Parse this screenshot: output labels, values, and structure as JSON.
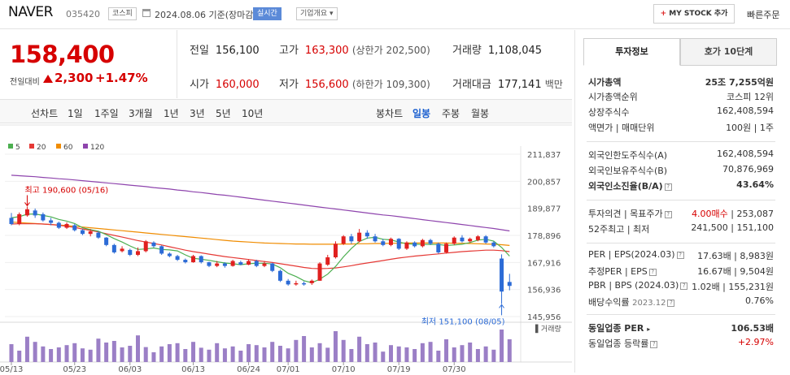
{
  "header": {
    "name": "NAVER",
    "code": "035420",
    "market": "코스피",
    "date": "2024.08.06",
    "basis": "기준(장마감)",
    "realtime": "실시간",
    "overview": "기업개요 ▾",
    "mystock": "MY STOCK 추가",
    "quick_order": "빠른주문"
  },
  "price": {
    "current": "158,400",
    "change_label": "전일대비",
    "change": "2,300",
    "pct": "+1.47%",
    "color": "#d60000"
  },
  "stats": {
    "prev_label": "전일",
    "prev": "156,100",
    "high_label": "고가",
    "high": "163,300",
    "upper_limit": "(상한가 202,500)",
    "volume_label": "거래량",
    "volume": "1,108,045",
    "open_label": "시가",
    "open": "160,000",
    "low_label": "저가",
    "low": "156,600",
    "lower_limit": "(하한가 109,300)",
    "amount_label": "거래대금",
    "amount": "177,141",
    "amount_unit": "백만"
  },
  "period_bar": {
    "line_chart": "선차트",
    "periods": [
      "1일",
      "1주일",
      "3개월",
      "1년",
      "3년",
      "5년",
      "10년"
    ],
    "candle_chart": "봉차트",
    "candle_periods": [
      "일봉",
      "주봉",
      "월봉"
    ],
    "active": "일봉"
  },
  "chart_data": {
    "type": "candlestick",
    "legend": [
      {
        "name": "5",
        "color": "#4caf50"
      },
      {
        "name": "20",
        "color": "#e53935"
      },
      {
        "name": "60",
        "color": "#f08c00"
      },
      {
        "name": "120",
        "color": "#8e44ad"
      }
    ],
    "y_ticks": [
      "211,837",
      "200,857",
      "189,877",
      "178,896",
      "167,916",
      "156,936",
      "145,956"
    ],
    "ylim": [
      145956,
      211837
    ],
    "x_ticks": [
      "05/13",
      "05/23",
      "06/03",
      "06/13",
      "06/24",
      "07/01",
      "07/10",
      "07/19",
      "07/30"
    ],
    "x_tick_index": [
      0,
      8,
      15,
      23,
      30,
      35,
      42,
      49,
      56
    ],
    "annotations": {
      "high": "최고 190,600 (05/16)",
      "low": "최저 151,100 (08/05)"
    },
    "volume_label": "거래량",
    "candles": [
      [
        186000,
        183500,
        188000,
        183000
      ],
      [
        183500,
        187500,
        188200,
        183000
      ],
      [
        187000,
        189500,
        190600,
        186500
      ],
      [
        189000,
        187000,
        189800,
        186000
      ],
      [
        187500,
        185000,
        188200,
        184500
      ],
      [
        185000,
        184000,
        186000,
        183000
      ],
      [
        184000,
        182000,
        184500,
        181500
      ],
      [
        182000,
        183500,
        184200,
        181500
      ],
      [
        183000,
        181000,
        183500,
        180500
      ],
      [
        181000,
        179500,
        181500,
        179000
      ],
      [
        179500,
        180500,
        181500,
        178500
      ],
      [
        180000,
        178000,
        180500,
        177500
      ],
      [
        178000,
        175000,
        178200,
        174500
      ],
      [
        175000,
        172000,
        175500,
        171500
      ],
      [
        172500,
        173500,
        174500,
        172000
      ],
      [
        173000,
        171000,
        173500,
        170500
      ],
      [
        171000,
        172500,
        174000,
        170500
      ],
      [
        172500,
        176500,
        177000,
        172000
      ],
      [
        176000,
        174500,
        176500,
        174000
      ],
      [
        174500,
        171500,
        174800,
        171000
      ],
      [
        171500,
        170500,
        172000,
        170000
      ],
      [
        170500,
        169000,
        171000,
        168500
      ],
      [
        169000,
        168000,
        169500,
        167500
      ],
      [
        168000,
        170500,
        171000,
        167800
      ],
      [
        170500,
        168000,
        170800,
        167500
      ],
      [
        168000,
        166500,
        168200,
        166000
      ],
      [
        166500,
        167500,
        168500,
        166000
      ],
      [
        167500,
        166500,
        168000,
        165800
      ],
      [
        166500,
        168500,
        169000,
        166200
      ],
      [
        168000,
        167000,
        168600,
        166800
      ],
      [
        167000,
        168500,
        169200,
        166800
      ],
      [
        168500,
        166500,
        169000,
        166000
      ],
      [
        166500,
        167500,
        168500,
        166000
      ],
      [
        167500,
        164500,
        167800,
        164000
      ],
      [
        164500,
        160500,
        165000,
        160000
      ],
      [
        160500,
        159000,
        161200,
        158500
      ],
      [
        159000,
        159500,
        160500,
        158500
      ],
      [
        159500,
        159000,
        160200,
        158500
      ],
      [
        159500,
        160500,
        161000,
        158800
      ],
      [
        160500,
        167500,
        168000,
        160500
      ],
      [
        167000,
        170000,
        171000,
        166500
      ],
      [
        170000,
        175500,
        176500,
        169500
      ],
      [
        175500,
        178500,
        179000,
        175000
      ],
      [
        178500,
        176500,
        179500,
        175500
      ],
      [
        176500,
        180000,
        181500,
        176000
      ],
      [
        180000,
        178500,
        181000,
        177500
      ],
      [
        178500,
        176500,
        179500,
        176000
      ],
      [
        176500,
        175000,
        177500,
        174500
      ],
      [
        175000,
        177500,
        178000,
        174500
      ],
      [
        177500,
        173500,
        177800,
        173000
      ],
      [
        173500,
        176000,
        176500,
        173000
      ],
      [
        176000,
        174500,
        176500,
        174000
      ],
      [
        174500,
        177000,
        177500,
        174000
      ],
      [
        177000,
        175500,
        177500,
        175000
      ],
      [
        175500,
        172000,
        176000,
        171500
      ],
      [
        172000,
        175500,
        176000,
        171500
      ],
      [
        175500,
        178000,
        178500,
        175000
      ],
      [
        178000,
        176500,
        179000,
        176000
      ],
      [
        176500,
        177500,
        178000,
        176000
      ],
      [
        177000,
        178500,
        179000,
        176500
      ],
      [
        178500,
        176000,
        179000,
        175500
      ],
      [
        176000,
        174500,
        176500,
        174000
      ],
      [
        169500,
        156100,
        171200,
        151100
      ],
      [
        160000,
        158400,
        163300,
        156600
      ]
    ],
    "volumes": [
      55,
      35,
      78,
      62,
      48,
      40,
      45,
      52,
      58,
      42,
      38,
      72,
      60,
      65,
      45,
      50,
      82,
      46,
      30,
      48,
      55,
      58,
      40,
      62,
      44,
      38,
      58,
      42,
      48,
      35,
      55,
      52,
      45,
      62,
      50,
      42,
      68,
      80,
      45,
      58,
      44,
      95,
      68,
      40,
      78,
      55,
      60,
      32,
      52,
      48,
      45,
      40,
      58,
      62,
      35,
      70,
      45,
      52,
      60,
      40,
      48,
      38,
      100,
      70
    ],
    "ma": {
      "5": [
        186000,
        186500,
        187500,
        187600,
        187000,
        186400,
        185400,
        184700,
        183700,
        182000,
        181200,
        180600,
        179200,
        177600,
        176200,
        174600,
        173200,
        173400,
        173800,
        173200,
        173000,
        172600,
        171000,
        169600,
        169200,
        168800,
        168200,
        167700,
        167400,
        167000,
        167400,
        167600,
        167600,
        167300,
        165800,
        163500,
        162200,
        160500,
        159700,
        161100,
        163200,
        166300,
        170200,
        173600,
        176400,
        177800,
        178100,
        177300,
        177100,
        176200,
        175500,
        175300,
        175200,
        175200,
        175200,
        174800,
        175000,
        175300,
        176000,
        177000,
        177300,
        176600,
        174000,
        170500
      ],
      "20": [
        183500,
        183600,
        183600,
        183600,
        183500,
        183300,
        183000,
        182600,
        182100,
        181500,
        180900,
        180300,
        179600,
        178900,
        178200,
        177500,
        176800,
        176200,
        175600,
        175000,
        174300,
        173600,
        172900,
        172300,
        171800,
        171300,
        170800,
        170300,
        169900,
        169500,
        169100,
        168700,
        168300,
        167900,
        167400,
        166900,
        166400,
        165900,
        165500,
        165400,
        165500,
        165700,
        166100,
        166600,
        167200,
        167700,
        168200,
        168700,
        169200,
        169700,
        170100,
        170500,
        170800,
        171100,
        171400,
        171700,
        172000,
        172300,
        172500,
        172700,
        172900,
        172900,
        172700,
        172300
      ],
      "60": [
        184300,
        184100,
        183900,
        183700,
        183500,
        183300,
        183100,
        182900,
        182600,
        182300,
        182000,
        181700,
        181400,
        181100,
        180800,
        180500,
        180200,
        179900,
        179600,
        179300,
        179000,
        178700,
        178400,
        178100,
        177800,
        177500,
        177200,
        176900,
        176600,
        176400,
        176200,
        176000,
        175800,
        175700,
        175600,
        175500,
        175400,
        175400,
        175300,
        175300,
        175300,
        175300,
        175400,
        175400,
        175500,
        175500,
        175600,
        175600,
        175700,
        175700,
        175800,
        175800,
        175800,
        175800,
        175800,
        175800,
        175700,
        175700,
        175600,
        175500,
        175400,
        175300,
        175100,
        174800
      ],
      "120": [
        203300,
        203100,
        202900,
        202700,
        202400,
        202200,
        201900,
        201700,
        201400,
        201100,
        200800,
        200500,
        200200,
        199900,
        199600,
        199300,
        199000,
        198700,
        198300,
        198000,
        197700,
        197300,
        197000,
        196600,
        196300,
        195900,
        195500,
        195200,
        194800,
        194400,
        194000,
        193600,
        193200,
        192800,
        192400,
        192000,
        191600,
        191200,
        190800,
        190400,
        190000,
        189600,
        189200,
        188800,
        188400,
        188000,
        187600,
        187200,
        186900,
        186500,
        186100,
        185700,
        185300,
        184900,
        184500,
        184100,
        183700,
        183300,
        182900,
        182500,
        182100,
        181700,
        181200,
        180700
      ]
    }
  },
  "right_panel": {
    "tabs": [
      "투자정보",
      "호가 10단계"
    ],
    "market_cap_label": "시가총액",
    "market_cap": "25조 7,255억원",
    "rank_label": "시가총액순위",
    "rank": "코스피 12위",
    "shares_label": "상장주식수",
    "shares": "162,408,594",
    "facevalue_label": "액면가 | 매매단위",
    "facevalue": "100원 | 1주",
    "foreign_limit_label": "외국인한도주식수(A)",
    "foreign_limit": "162,408,594",
    "foreign_hold_label": "외국인보유주식수(B)",
    "foreign_hold": "70,876,969",
    "foreign_ratio_label": "외국인소진율(B/A)",
    "foreign_ratio": "43.64%",
    "opinion_label": "투자의견 | 목표주가",
    "opinion": "4.00매수",
    "target": "253,087",
    "w52_label": "52주최고 | 최저",
    "w52": "241,500 | 151,100",
    "per_label": "PER | EPS(2024.03)",
    "per": "17.63배 | 8,983원",
    "est_per_label": "추정PER | EPS",
    "est_per": "16.67배 | 9,504원",
    "pbr_label": "PBR | BPS (2024.03)",
    "pbr": "1.02배 | 155,231원",
    "div_label": "배당수익률",
    "div_date": "2023.12",
    "div": "0.76%",
    "ind_per_label": "동일업종 PER",
    "ind_per": "106.53배",
    "ind_rate_label": "동일업종 등락률",
    "ind_rate": "+2.97%"
  }
}
